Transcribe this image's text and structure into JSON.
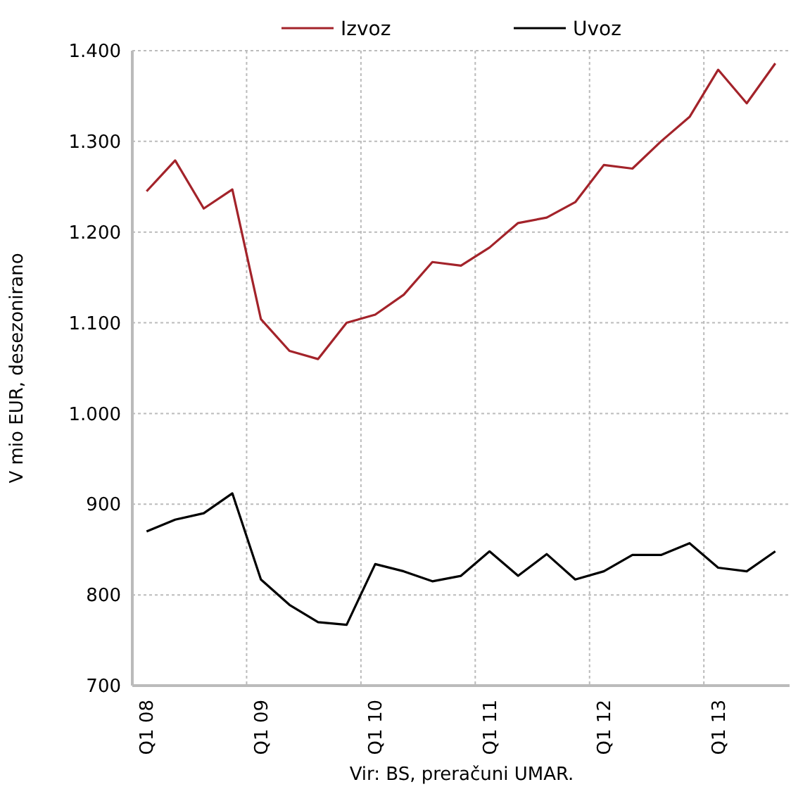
{
  "chart_data": {
    "type": "line",
    "ylabel": "V mio EUR, desezonirano",
    "categories": [
      "Q1 08",
      null,
      null,
      null,
      "Q1 09",
      null,
      null,
      null,
      "Q1 10",
      null,
      null,
      null,
      "Q1 11",
      null,
      null,
      null,
      "Q1 12",
      null,
      null,
      null,
      "Q1 13",
      null,
      null
    ],
    "series": [
      {
        "name": "Izvoz",
        "color": "#a3232a",
        "values": [
          1245,
          1279,
          1226,
          1247,
          1104,
          1069,
          1060,
          1100,
          1109,
          1131,
          1167,
          1163,
          1183,
          1210,
          1216,
          1233,
          1274,
          1270,
          1300,
          1327,
          1379,
          1342,
          1386
        ]
      },
      {
        "name": "Uvoz",
        "color": "#000000",
        "values": [
          870,
          883,
          890,
          912,
          817,
          789,
          770,
          767,
          834,
          826,
          815,
          821,
          848,
          821,
          845,
          817,
          826,
          844,
          844,
          857,
          830,
          826,
          848
        ]
      }
    ],
    "ylim": [
      700,
      1400
    ],
    "yticks": [
      {
        "value": 700,
        "label": "700"
      },
      {
        "value": 800,
        "label": "800"
      },
      {
        "value": 900,
        "label": "900"
      },
      {
        "value": 1000,
        "label": "1.000"
      },
      {
        "value": 1100,
        "label": "1.100"
      },
      {
        "value": 1200,
        "label": "1.200"
      },
      {
        "value": 1300,
        "label": "1.300"
      },
      {
        "value": 1400,
        "label": "1.400"
      }
    ],
    "grid": true,
    "legend": "top",
    "marker": "none",
    "line_style": "solid",
    "annotations": [
      "Vir: BS, preračuni UMAR."
    ]
  }
}
